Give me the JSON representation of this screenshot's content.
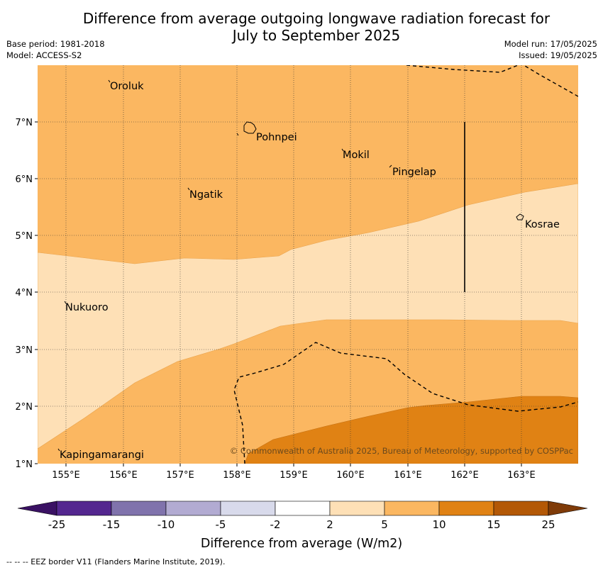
{
  "title_line1": "Difference from average outgoing longwave radiation forecast for",
  "title_line2": "July to September 2025",
  "base_period": "Base period: 1981-2018",
  "model": "Model: ACCESS-S2",
  "model_run": "Model run: 17/05/2025",
  "issued": "Issued: 19/05/2025",
  "places": [
    "Oroluk",
    "Pohnpei",
    "Mokil",
    "Pingelap",
    "Ngatik",
    "Kosrae",
    "Nukuoro",
    "Kapingamarangi"
  ],
  "lon_labels": [
    "155°E",
    "156°E",
    "157°E",
    "158°E",
    "159°E",
    "160°E",
    "161°E",
    "162°E",
    "163°E"
  ],
  "lat_labels": [
    "7°N",
    "6°N",
    "5°N",
    "4°N",
    "3°N",
    "2°N",
    "1°N"
  ],
  "copyright": "© Commonwealth of Australia 2025, Bureau of Meteorology, supported by COSPPac",
  "colorbar": {
    "ticks": [
      "-25",
      "-15",
      "-10",
      "-5",
      "-2",
      "2",
      "5",
      "10",
      "15",
      "25"
    ],
    "colors": [
      "#3a1163",
      "#54278f",
      "#8073ac",
      "#b2abd2",
      "#d8daeb",
      "#ffffff",
      "#fee0b6",
      "#fbb761",
      "#e08214",
      "#b35806",
      "#7f3b08"
    ],
    "title": "Difference from average (W/m2)"
  },
  "footnote": "--  --  -- EEZ border V11 (Flanders Marine Institute, 2019)."
}
